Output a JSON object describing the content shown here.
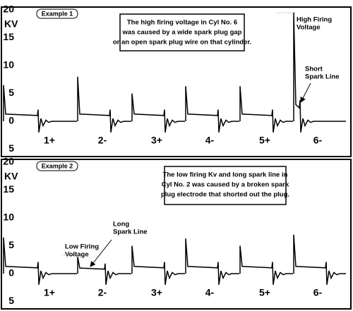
{
  "panels": [
    {
      "example": "Example 1",
      "axis_label": "KV",
      "yticks": [
        20,
        15,
        10,
        5,
        0,
        {
          "value": -5,
          "label": "5"
        }
      ],
      "note": [
        "The high firing voltage in Cyl No. 6",
        "was caused by a wide spark plug gap",
        "or an open spark plug wire on that cylinder."
      ],
      "annotations": [
        {
          "lines": [
            "High Firing",
            "Voltage"
          ]
        },
        {
          "lines": [
            "Short",
            "Spark Line"
          ]
        }
      ],
      "cylinders": [
        {
          "label": "1+",
          "peak": 6.5,
          "spark": 1.3
        },
        {
          "label": "2-",
          "peak": 8,
          "spark": 1.3
        },
        {
          "label": "3+",
          "peak": 5,
          "spark": 1.3
        },
        {
          "label": "4-",
          "peak": 6.3,
          "spark": 1.3
        },
        {
          "label": "5+",
          "peak": 6.3,
          "spark": 1.3
        },
        {
          "label": "6-",
          "peak": 19.5,
          "spark": 3
        }
      ]
    },
    {
      "example": "Example 2",
      "axis_label": "KV",
      "yticks": [
        20,
        15,
        10,
        5,
        0,
        {
          "value": -5,
          "label": "5"
        }
      ],
      "note": [
        "The low firing Kv and long spark line in",
        "Cyl No. 2 was caused by a broken spark",
        "plug electrode that shorted out the plug."
      ],
      "annotations": [
        {
          "lines": [
            "Low Firing",
            "Voltage"
          ]
        },
        {
          "lines": [
            "Long",
            "Spark Line"
          ]
        }
      ],
      "cylinders": [
        {
          "label": "1+",
          "peak": 6.5,
          "spark": 1.3
        },
        {
          "label": "2-",
          "peak": 3,
          "spark": 1
        },
        {
          "label": "3+",
          "peak": 5,
          "spark": 1.3
        },
        {
          "label": "4-",
          "peak": 6.3,
          "spark": 1.3
        },
        {
          "label": "5+",
          "peak": 5,
          "spark": 1.3
        },
        {
          "label": "6-",
          "peak": 7,
          "spark": 1.3
        }
      ]
    }
  ]
}
